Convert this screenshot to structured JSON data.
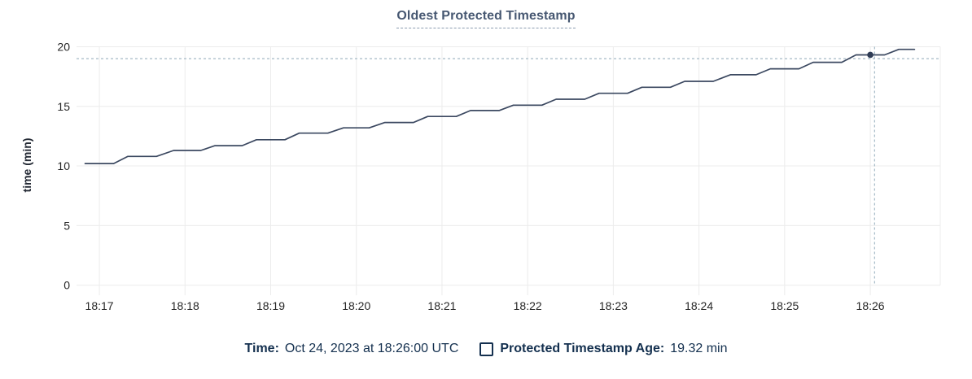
{
  "title": "Oldest Protected Timestamp",
  "y_axis": {
    "label": "time (min)"
  },
  "legend": {
    "time_label": "Time:",
    "time_value": "Oct 24, 2023 at 18:26:00 UTC",
    "series_label": "Protected Timestamp Age:",
    "series_value": "19.32 min"
  },
  "colors": {
    "line": "#3b4860",
    "dot": "#2f3c55",
    "crosshair": "#a4b9c6",
    "grid": "#ececec",
    "title": "#475872",
    "legend_text": "#14304f",
    "tick_text": "#262626"
  },
  "chart_data": {
    "type": "line",
    "title": "Oldest Protected Timestamp",
    "xlabel": "",
    "ylabel": "time (min)",
    "ylim": [
      0,
      20
    ],
    "y_ticks": [
      0,
      5,
      10,
      15,
      20
    ],
    "x_ticks": [
      "18:17",
      "18:18",
      "18:19",
      "18:20",
      "18:21",
      "18:22",
      "18:23",
      "18:24",
      "18:25",
      "18:26"
    ],
    "x_domain": [
      "18:16:44",
      "18:26:49"
    ],
    "grid": true,
    "legend_position": "bottom",
    "series": [
      {
        "name": "Protected Timestamp Age",
        "unit": "min",
        "points": [
          [
            "18:16:50",
            10.2
          ],
          [
            "18:17:10",
            10.2
          ],
          [
            "18:17:20",
            10.8
          ],
          [
            "18:17:40",
            10.8
          ],
          [
            "18:17:52",
            11.3
          ],
          [
            "18:18:11",
            11.3
          ],
          [
            "18:18:21",
            11.7
          ],
          [
            "18:18:40",
            11.7
          ],
          [
            "18:18:50",
            12.2
          ],
          [
            "18:19:10",
            12.2
          ],
          [
            "18:19:20",
            12.75
          ],
          [
            "18:19:40",
            12.75
          ],
          [
            "18:19:51",
            13.2
          ],
          [
            "18:20:09",
            13.2
          ],
          [
            "18:20:20",
            13.65
          ],
          [
            "18:20:40",
            13.65
          ],
          [
            "18:20:50",
            14.15
          ],
          [
            "18:21:10",
            14.15
          ],
          [
            "18:21:20",
            14.65
          ],
          [
            "18:21:40",
            14.65
          ],
          [
            "18:21:50",
            15.1
          ],
          [
            "18:22:10",
            15.1
          ],
          [
            "18:22:20",
            15.6
          ],
          [
            "18:22:40",
            15.6
          ],
          [
            "18:22:50",
            16.1
          ],
          [
            "18:23:10",
            16.1
          ],
          [
            "18:23:20",
            16.6
          ],
          [
            "18:23:40",
            16.6
          ],
          [
            "18:23:50",
            17.1
          ],
          [
            "18:24:10",
            17.1
          ],
          [
            "18:24:22",
            17.65
          ],
          [
            "18:24:40",
            17.65
          ],
          [
            "18:24:50",
            18.15
          ],
          [
            "18:25:10",
            18.15
          ],
          [
            "18:25:20",
            18.7
          ],
          [
            "18:25:40",
            18.7
          ],
          [
            "18:25:50",
            19.32
          ],
          [
            "18:26:10",
            19.32
          ],
          [
            "18:26:20",
            19.78
          ],
          [
            "18:26:31",
            19.78
          ]
        ]
      }
    ],
    "hover": {
      "crosshair_time": "18:26:03",
      "crosshair_value": 19.0,
      "point_time": "18:26:00",
      "point_value": 19.32
    }
  }
}
